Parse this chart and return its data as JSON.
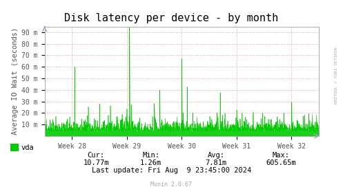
{
  "title": "Disk latency per device - by month",
  "ylabel": "Average IO Wait (seconds)",
  "line_color": "#00cc00",
  "line_color_fill": "#00cc00",
  "background_color": "#ffffff",
  "plot_bg_color": "#ffffff",
  "grid_color": "#ff9999",
  "grid_style": "dotted",
  "ytick_labels": [
    "10 m",
    "20 m",
    "30 m",
    "40 m",
    "50 m",
    "60 m",
    "70 m",
    "80 m",
    "90 m"
  ],
  "ytick_values": [
    10,
    20,
    30,
    40,
    50,
    60,
    70,
    80,
    90
  ],
  "ymax": 95,
  "ymin": 0,
  "xtick_labels": [
    "Week 28",
    "Week 29",
    "Week 30",
    "Week 31",
    "Week 32"
  ],
  "legend_label": "vda",
  "legend_color": "#00cc00",
  "cur_val": "10.77m",
  "min_val": "1.26m",
  "avg_val": "7.81m",
  "max_val": "605.65m",
  "last_update": "Last update: Fri Aug  9 23:45:00 2024",
  "munin_version": "Munin 2.0.67",
  "rrdtool_label": "RRDTOOL / TOBI OETIKER",
  "title_fontsize": 11,
  "axis_fontsize": 7.5,
  "tick_fontsize": 7,
  "stats_fontsize": 7.5,
  "monospace_font": "DejaVu Sans Mono"
}
